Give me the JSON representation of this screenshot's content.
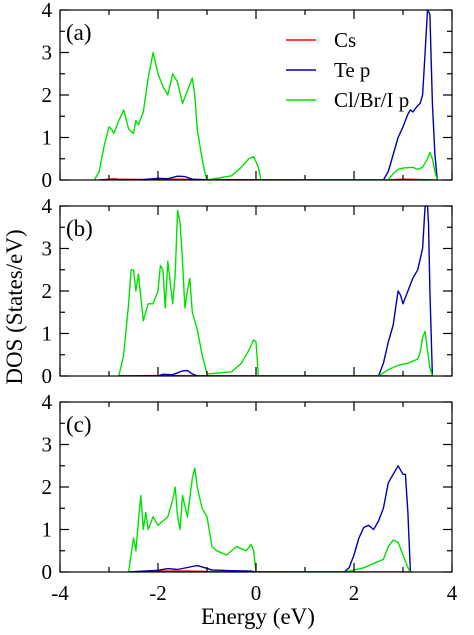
{
  "figure": {
    "ylabel": "DOS (States/eV)",
    "xlabel": "Energy (eV)"
  },
  "legend": [
    {
      "name": "Cs",
      "color": "#ff0000"
    },
    {
      "name": "Te p",
      "color": "#0000b0"
    },
    {
      "name": "Cl/Br/I p",
      "color": "#00e000"
    }
  ],
  "chart_data": [
    {
      "type": "line",
      "panel_label": "(a)",
      "xlim": [
        -4,
        4
      ],
      "ylim": [
        0,
        4
      ],
      "xticks": [
        -4,
        -2,
        0,
        2,
        4
      ],
      "yticks": [
        0,
        1,
        2,
        3,
        4
      ],
      "show_xtick_labels": false,
      "series": [
        {
          "name": "Cs",
          "color": "#ff0000",
          "x": [
            -3.2,
            -3.0,
            -2.9,
            -2.8,
            -2.0,
            -1.6,
            -1.2,
            2.7,
            3.0,
            3.7
          ],
          "y": [
            0,
            0.02,
            0.03,
            0.02,
            0.01,
            0.02,
            0.01,
            0.0,
            0.02,
            0.0
          ]
        },
        {
          "name": "Te p",
          "color": "#0000b0",
          "x": [
            -3.2,
            -2.4,
            -2.0,
            -1.8,
            -1.6,
            -1.45,
            -1.3,
            -1.0,
            2.6,
            2.7,
            2.8,
            2.9,
            3.0,
            3.1,
            3.15,
            3.2,
            3.3,
            3.35,
            3.4,
            3.45,
            3.5,
            3.55,
            3.6,
            3.65,
            3.7
          ],
          "y": [
            0,
            0.0,
            0.04,
            0.03,
            0.09,
            0.08,
            0.02,
            0.0,
            0.0,
            0.2,
            0.6,
            1.0,
            1.25,
            1.55,
            1.65,
            1.6,
            1.75,
            1.8,
            2.0,
            3.0,
            4.0,
            3.9,
            1.8,
            0.6,
            0.0
          ]
        },
        {
          "name": "Cl/Br/I p",
          "color": "#00e000",
          "x": [
            -3.3,
            -3.2,
            -3.1,
            -3.0,
            -2.95,
            -2.9,
            -2.8,
            -2.7,
            -2.6,
            -2.5,
            -2.45,
            -2.4,
            -2.3,
            -2.2,
            -2.1,
            -2.0,
            -1.9,
            -1.8,
            -1.7,
            -1.6,
            -1.5,
            -1.4,
            -1.3,
            -1.25,
            -1.2,
            -1.1,
            -1.05,
            -1.0,
            -0.5,
            -0.3,
            -0.15,
            -0.05,
            0.05,
            0.1,
            2.7,
            2.8,
            2.9,
            3.0,
            3.2,
            3.3,
            3.4,
            3.5,
            3.55,
            3.6,
            3.65,
            3.7
          ],
          "y": [
            0,
            0.2,
            0.8,
            1.25,
            1.2,
            1.1,
            1.4,
            1.65,
            1.2,
            1.1,
            1.4,
            1.3,
            1.6,
            2.4,
            3.0,
            2.5,
            2.2,
            2.0,
            2.5,
            2.3,
            1.8,
            2.1,
            2.4,
            2.0,
            1.2,
            0.5,
            0.2,
            0.0,
            0.1,
            0.3,
            0.5,
            0.55,
            0.3,
            0.0,
            0.0,
            0.15,
            0.25,
            0.28,
            0.3,
            0.25,
            0.3,
            0.5,
            0.65,
            0.5,
            0.2,
            0.0
          ]
        }
      ]
    },
    {
      "type": "line",
      "panel_label": "(b)",
      "xlim": [
        -4,
        4
      ],
      "ylim": [
        0,
        4
      ],
      "xticks": [
        -4,
        -2,
        0,
        2,
        4
      ],
      "yticks": [
        0,
        1,
        2,
        3,
        4
      ],
      "show_xtick_labels": false,
      "series": [
        {
          "name": "Cs",
          "color": "#ff0000",
          "x": [
            -2.8,
            -2.2,
            -1.6,
            -1.0,
            2.5,
            3.6
          ],
          "y": [
            0,
            0.01,
            0.01,
            0.0,
            0.0,
            0.0
          ]
        },
        {
          "name": "Te p",
          "color": "#0000b0",
          "x": [
            -2.8,
            -2.0,
            -1.9,
            -1.7,
            -1.5,
            -1.4,
            -1.3,
            -1.2,
            2.5,
            2.6,
            2.7,
            2.8,
            2.85,
            2.9,
            2.95,
            3.0,
            3.1,
            3.2,
            3.3,
            3.4,
            3.45,
            3.5,
            3.52,
            3.55,
            3.6
          ],
          "y": [
            0,
            0.0,
            0.04,
            0.03,
            0.12,
            0.13,
            0.05,
            0.0,
            0.0,
            0.3,
            0.8,
            1.2,
            1.6,
            2.0,
            1.9,
            1.7,
            2.0,
            2.3,
            2.5,
            3.0,
            4.0,
            4.0,
            3.6,
            2.0,
            0.0
          ]
        },
        {
          "name": "Cl/Br/I p",
          "color": "#00e000",
          "x": [
            -2.8,
            -2.7,
            -2.6,
            -2.55,
            -2.5,
            -2.45,
            -2.4,
            -2.3,
            -2.2,
            -2.1,
            -2.0,
            -1.95,
            -1.9,
            -1.85,
            -1.8,
            -1.7,
            -1.65,
            -1.6,
            -1.55,
            -1.5,
            -1.45,
            -1.4,
            -1.35,
            -1.3,
            -1.2,
            -1.1,
            -1.0,
            -0.5,
            -0.3,
            -0.15,
            -0.05,
            0.0,
            0.05,
            2.5,
            2.7,
            2.9,
            3.0,
            3.1,
            3.2,
            3.3,
            3.35,
            3.4,
            3.45,
            3.5,
            3.55,
            3.6
          ],
          "y": [
            0,
            0.5,
            1.7,
            2.5,
            2.5,
            2.0,
            2.4,
            1.3,
            1.7,
            1.7,
            2.0,
            2.6,
            2.5,
            1.6,
            2.7,
            1.7,
            2.4,
            3.9,
            3.6,
            2.7,
            1.6,
            2.0,
            2.3,
            1.5,
            1.1,
            0.5,
            0.05,
            0.1,
            0.3,
            0.6,
            0.85,
            0.8,
            0.0,
            0.0,
            0.15,
            0.25,
            0.28,
            0.3,
            0.35,
            0.4,
            0.55,
            0.9,
            1.05,
            0.6,
            0.2,
            0.0
          ]
        }
      ]
    },
    {
      "type": "line",
      "panel_label": "(c)",
      "xlim": [
        -4,
        4
      ],
      "ylim": [
        0,
        4
      ],
      "xticks": [
        -4,
        -2,
        0,
        2,
        4
      ],
      "yticks": [
        0,
        1,
        2,
        3,
        4
      ],
      "show_xtick_labels": true,
      "series": [
        {
          "name": "Cs",
          "color": "#ff0000",
          "x": [
            -2.6,
            -2.0,
            -1.4,
            -0.9,
            1.8,
            3.2
          ],
          "y": [
            0,
            0.02,
            0.02,
            0.01,
            0.0,
            0.0
          ]
        },
        {
          "name": "Te p",
          "color": "#0000b0",
          "x": [
            -2.6,
            -2.0,
            -1.8,
            -1.6,
            -1.3,
            -1.2,
            -1.1,
            -0.9,
            -0.5,
            -0.1,
            0.0,
            1.8,
            1.9,
            2.0,
            2.1,
            2.2,
            2.3,
            2.4,
            2.5,
            2.6,
            2.7,
            2.8,
            2.9,
            3.0,
            3.05,
            3.1,
            3.15
          ],
          "y": [
            0,
            0.04,
            0.08,
            0.06,
            0.13,
            0.15,
            0.12,
            0.05,
            0.03,
            0.02,
            0.0,
            0.0,
            0.1,
            0.4,
            0.8,
            1.05,
            1.1,
            1.0,
            1.2,
            1.5,
            2.1,
            2.3,
            2.5,
            2.3,
            2.3,
            1.4,
            0.0
          ]
        },
        {
          "name": "Cl/Br/I p",
          "color": "#00e000",
          "x": [
            -2.6,
            -2.5,
            -2.45,
            -2.4,
            -2.35,
            -2.3,
            -2.25,
            -2.2,
            -2.1,
            -2.0,
            -1.9,
            -1.8,
            -1.7,
            -1.65,
            -1.6,
            -1.55,
            -1.5,
            -1.4,
            -1.3,
            -1.25,
            -1.2,
            -1.1,
            -1.0,
            -0.9,
            -0.8,
            -0.6,
            -0.4,
            -0.2,
            -0.1,
            -0.05,
            0.0,
            1.8,
            2.2,
            2.4,
            2.6,
            2.7,
            2.8,
            2.9,
            3.0,
            3.1,
            3.15
          ],
          "y": [
            0,
            0.8,
            0.5,
            1.2,
            1.8,
            1.0,
            1.4,
            1.0,
            1.3,
            1.1,
            1.2,
            1.3,
            1.7,
            2.0,
            1.3,
            1.0,
            1.8,
            1.3,
            2.2,
            2.45,
            2.0,
            1.5,
            1.3,
            0.6,
            0.5,
            0.4,
            0.6,
            0.5,
            0.65,
            0.5,
            0.0,
            0.0,
            0.1,
            0.2,
            0.3,
            0.6,
            0.75,
            0.7,
            0.4,
            0.1,
            0.0
          ]
        }
      ]
    }
  ]
}
